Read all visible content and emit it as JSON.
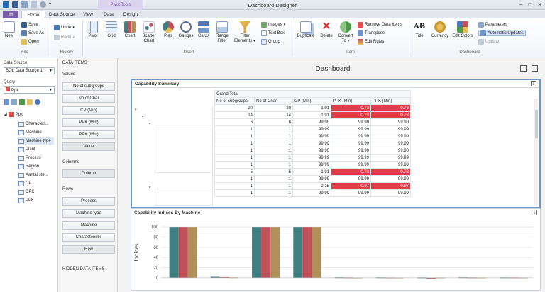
{
  "app": {
    "title": "Dashboard Designer",
    "context_tab": "Pivot Tools"
  },
  "tabs": [
    {
      "label": "Home",
      "active": true
    },
    {
      "label": "Data Source",
      "active": false
    },
    {
      "label": "View",
      "active": false
    },
    {
      "label": "Data",
      "active": false
    },
    {
      "label": "Design",
      "active": false
    }
  ],
  "ribbon": {
    "file": {
      "new": "New",
      "save": "Save",
      "save_as": "Save As",
      "open": "Open",
      "group": "File"
    },
    "history": {
      "undo": "Undo",
      "redo": "Redo",
      "group": "History"
    },
    "insert": {
      "items": [
        "Pivot",
        "Grid",
        "Chart",
        "Scatter Chart",
        "Pies",
        "Gauges",
        "Cards",
        "Range Filter",
        "Filter Elements"
      ],
      "small": [
        "Images",
        "Text Box",
        "Group"
      ],
      "group": "Insert"
    },
    "item": {
      "duplicate": "Duplicate",
      "delete": "Delete",
      "convert": "Convert To",
      "remove_data_items": "Remove Data Items",
      "transpose": "Transpose",
      "edit_rules": "Edit Rules",
      "group": "Item"
    },
    "dashboard": {
      "title": "Title",
      "currency": "Currency",
      "edit_colors": "Edit Colors",
      "parameters": "Parameters",
      "automatic_updates": "Automatic Updates",
      "update": "Update",
      "group": "Dashboard"
    }
  },
  "left": {
    "data_source_label": "Data Source",
    "data_source_value": "SQL Data Source 1",
    "query_label": "Query",
    "query_value": "Ppk",
    "tree_root": "Ppk",
    "fields": [
      "Characteri...",
      "Machine",
      "Machine type",
      "Plant",
      "Process",
      "Region",
      "Aantal ste...",
      "CP",
      "CPK",
      "PPK"
    ]
  },
  "items": {
    "header": "DATA ITEMS",
    "values_label": "Values",
    "values": [
      "No of subgroups",
      "No of Char",
      "CP (Min)",
      "PPK (Min)",
      "PPK (Min)",
      "Value"
    ],
    "columns_label": "Columns",
    "columns": [
      "Column"
    ],
    "rows_label": "Rows",
    "rows": [
      "Process",
      "Machine type",
      "Machine",
      "Characteristic",
      "Row"
    ],
    "hidden_label": "HIDDEN DATA ITEMS"
  },
  "dashboard": {
    "title": "Dashboard",
    "pivot": {
      "title": "Capability Summary",
      "grand_total": "Grand Total",
      "headers": [
        "No of subgroups",
        "No of Char",
        "CP (Min)",
        "PPK (Min)",
        "PPK (Min)"
      ],
      "rows": [
        [
          "20",
          "20",
          "1.91",
          "0.73",
          "0.73"
        ],
        [
          "14",
          "14",
          "1.91",
          "0.73",
          "0.73"
        ],
        [
          "6",
          "6",
          "99.99",
          "99.99",
          "99.99"
        ],
        [
          "1",
          "1",
          "99.99",
          "99.99",
          "99.99"
        ],
        [
          "1",
          "1",
          "99.99",
          "99.99",
          "99.99"
        ],
        [
          "1",
          "1",
          "99.99",
          "99.99",
          "99.99"
        ],
        [
          "1",
          "1",
          "99.99",
          "99.99",
          "99.99"
        ],
        [
          "1",
          "1",
          "99.99",
          "99.99",
          "99.99"
        ],
        [
          "1",
          "1",
          "99.99",
          "99.99",
          "99.99"
        ],
        [
          "5",
          "5",
          "1.91",
          "0.73",
          "0.73"
        ],
        [
          "1",
          "1",
          "99.99",
          "99.99",
          "99.99"
        ],
        [
          "1",
          "1",
          "2.15",
          "0.97",
          "0.97"
        ],
        [
          "1",
          "1",
          "99.99",
          "99.99",
          "99.99"
        ]
      ],
      "red_rows": [
        0,
        1,
        9,
        11
      ]
    },
    "chart_title": "Capability Indices By Machine"
  },
  "colors": {
    "accent": "#7a5da8",
    "red_cell": "#e23c4a",
    "series1": "#3f7f82",
    "series2": "#c0505a",
    "series3": "#b08f58"
  },
  "chart_data": {
    "type": "bar",
    "title": "Capability Indices By Machine",
    "ylabel": "Indices",
    "ylim": [
      -10,
      110
    ],
    "yticks": [
      0,
      20,
      40,
      60,
      80,
      100
    ],
    "categories": [
      "",
      "",
      "",
      "",
      "",
      "",
      "",
      "",
      ""
    ],
    "series": [
      {
        "values": [
          99.99,
          1.9,
          99.99,
          99.99,
          0.9,
          0.8,
          0.7,
          0.9,
          0.8
        ]
      },
      {
        "values": [
          99.99,
          1.2,
          99.99,
          99.99,
          0.7,
          0.6,
          -1.5,
          0.7,
          0.7
        ]
      },
      {
        "values": [
          99.99,
          0.8,
          99.99,
          99.99,
          0.5,
          0.5,
          0.6,
          0.6,
          0.6
        ]
      }
    ],
    "grid": true,
    "legend": "none"
  }
}
